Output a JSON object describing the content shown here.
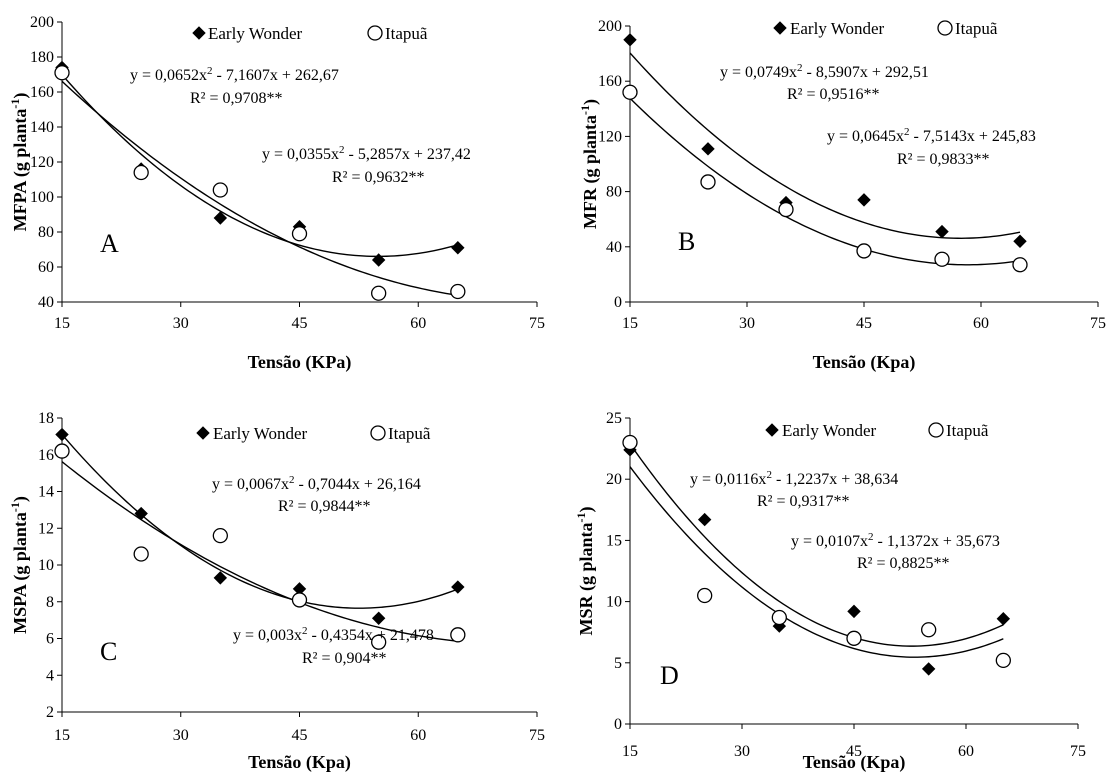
{
  "chart_data": [
    {
      "type": "scatter",
      "letter": "A",
      "xlabel": "Tensão (KPa)",
      "ylabel": "MFPA",
      "ylabel_unit": "(g planta",
      "ylabel_sup": "-1",
      "ylabel_close": ")",
      "xlim": [
        15,
        75
      ],
      "ylim": [
        40,
        200
      ],
      "xticks": [
        15,
        30,
        45,
        60,
        75
      ],
      "yticks": [
        40,
        60,
        80,
        100,
        120,
        140,
        160,
        180,
        200
      ],
      "grid": false,
      "legend_position": "top",
      "series": [
        {
          "name": "Early Wonder",
          "marker": "diamond-filled",
          "x": [
            15,
            25,
            35,
            45,
            55,
            65
          ],
          "y": [
            174,
            116,
            88,
            83,
            64,
            71
          ],
          "fit": {
            "a": 0.0652,
            "b": -7.1607,
            "c": 262.67
          },
          "equation": {
            "pre": "y = 0,0652x",
            "post": " - 7,1607x + 262,67"
          },
          "r2": "R² = 0,9708**"
        },
        {
          "name": "Itapuã",
          "marker": "circle-open",
          "x": [
            15,
            25,
            35,
            45,
            55,
            65
          ],
          "y": [
            171,
            114,
            104,
            79,
            45,
            46
          ],
          "fit": {
            "a": 0.0355,
            "b": -5.2857,
            "c": 237.42
          },
          "equation": {
            "pre": "y = 0,0355x",
            "post": " - 5,2857x + 237,42"
          },
          "r2": "R² = 0,9632**"
        }
      ]
    },
    {
      "type": "scatter",
      "letter": "B",
      "xlabel": "Tensão (Kpa)",
      "ylabel": "MFR",
      "ylabel_unit": "(g planta",
      "ylabel_sup": "-1",
      "ylabel_close": ")",
      "xlim": [
        15,
        75
      ],
      "ylim": [
        0,
        200
      ],
      "xticks": [
        15,
        30,
        45,
        60,
        75
      ],
      "yticks": [
        0,
        40,
        80,
        120,
        160,
        200
      ],
      "grid": false,
      "legend_position": "top",
      "series": [
        {
          "name": "Early Wonder",
          "marker": "diamond-filled",
          "x": [
            15,
            25,
            35,
            45,
            55,
            65
          ],
          "y": [
            190,
            111,
            72,
            74,
            51,
            44
          ],
          "fit": {
            "a": 0.0749,
            "b": -8.5907,
            "c": 292.51
          },
          "equation": {
            "pre": "y = 0,0749x",
            "post": " - 8,5907x + 292,51"
          },
          "r2": "R² = 0,9516**"
        },
        {
          "name": "Itapuã",
          "marker": "circle-open",
          "x": [
            15,
            25,
            35,
            45,
            55,
            65
          ],
          "y": [
            152,
            87,
            67,
            37,
            31,
            27
          ],
          "fit": {
            "a": 0.0645,
            "b": -7.5143,
            "c": 245.83
          },
          "equation": {
            "pre": "y = 0,0645x",
            "post": " - 7,5143x + 245,83"
          },
          "r2": "R² = 0,9833**"
        }
      ]
    },
    {
      "type": "scatter",
      "letter": "C",
      "xlabel": "Tensão (Kpa)",
      "ylabel": "MSPA",
      "ylabel_unit": "(g planta",
      "ylabel_sup": "-1",
      "ylabel_close": ")",
      "xlim": [
        15,
        75
      ],
      "ylim": [
        2,
        18
      ],
      "xticks": [
        15,
        30,
        45,
        60,
        75
      ],
      "yticks": [
        2,
        4,
        6,
        8,
        10,
        12,
        14,
        16,
        18
      ],
      "grid": false,
      "legend_position": "top",
      "series": [
        {
          "name": "Early Wonder",
          "marker": "diamond-filled",
          "x": [
            15,
            25,
            35,
            45,
            55,
            65
          ],
          "y": [
            17.1,
            12.8,
            9.3,
            8.7,
            7.1,
            8.8
          ],
          "fit": {
            "a": 0.0067,
            "b": -0.7044,
            "c": 26.164
          },
          "equation": {
            "pre": "y = 0,0067x",
            "post": " - 0,7044x + 26,164"
          },
          "r2": "R² = 0,9844**"
        },
        {
          "name": "Itapuã",
          "marker": "circle-open",
          "x": [
            15,
            25,
            35,
            45,
            55,
            65
          ],
          "y": [
            16.2,
            10.6,
            11.6,
            8.1,
            5.8,
            6.2
          ],
          "fit": {
            "a": 0.003,
            "b": -0.4354,
            "c": 21.478
          },
          "equation": {
            "pre": "y = 0,003x",
            "post": " - 0,4354x + 21,478"
          },
          "r2": "R² = 0,904**"
        }
      ]
    },
    {
      "type": "scatter",
      "letter": "D",
      "xlabel": "Tensão (Kpa)",
      "ylabel": "MSR",
      "ylabel_unit": "(g planta",
      "ylabel_sup": "-1",
      "ylabel_close": ")",
      "xlim": [
        15,
        75
      ],
      "ylim": [
        0,
        25
      ],
      "xticks": [
        15,
        30,
        45,
        60,
        75
      ],
      "yticks": [
        0,
        5,
        10,
        15,
        20,
        25
      ],
      "grid": false,
      "legend_position": "top",
      "series": [
        {
          "name": "Early Wonder",
          "marker": "diamond-filled",
          "x": [
            15,
            25,
            35,
            45,
            55,
            65
          ],
          "y": [
            22.4,
            16.7,
            8.0,
            9.2,
            4.5,
            8.6
          ],
          "fit": {
            "a": 0.0116,
            "b": -1.2237,
            "c": 38.634
          },
          "equation": {
            "pre": "y = 0,0116x",
            "post": " - 1,2237x + 38,634"
          },
          "r2": "R² = 0,9317**"
        },
        {
          "name": "Itapuã",
          "marker": "circle-open",
          "x": [
            15,
            25,
            35,
            45,
            55,
            65
          ],
          "y": [
            23.0,
            10.5,
            8.7,
            7.0,
            7.7,
            5.2
          ],
          "fit": {
            "a": 0.0107,
            "b": -1.1372,
            "c": 35.673
          },
          "equation": {
            "pre": "y = 0,0107x",
            "post": " - 1,1372x + 35,673"
          },
          "r2": "R² = 0,8825**"
        }
      ]
    }
  ]
}
